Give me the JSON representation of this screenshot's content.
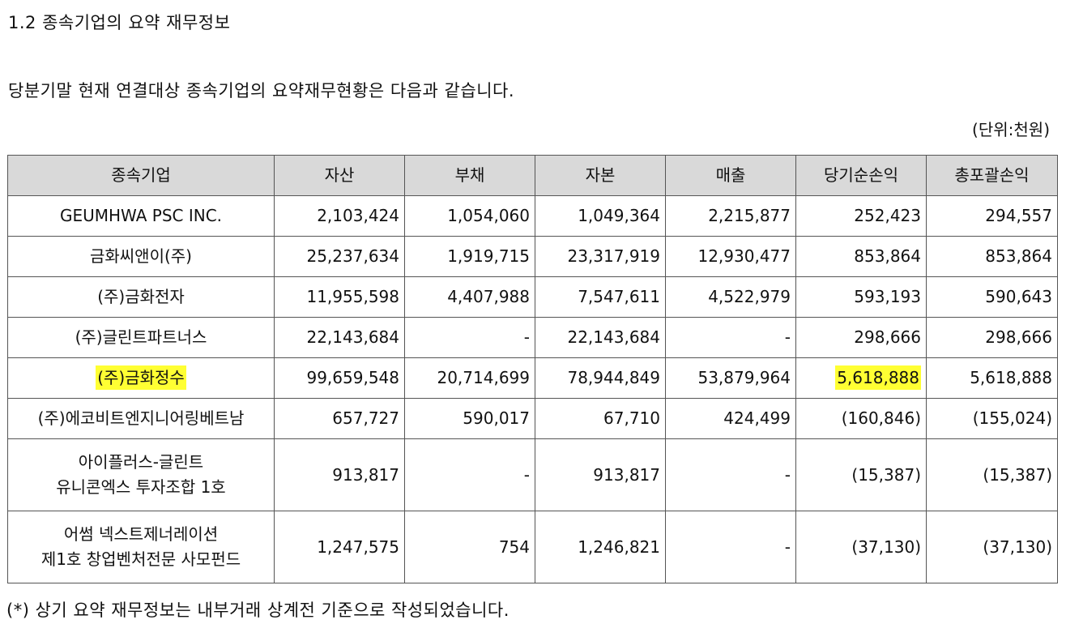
{
  "heading": "1.2 종속기업의 요약 재무정보",
  "intro": "당분기말 현재 연결대상 종속기업의 요약재무현황은 다음과 같습니다.",
  "unit": "(단위:천원)",
  "highlight_color": "#ffff33",
  "table": {
    "headers": [
      "종속기업",
      "자산",
      "부채",
      "자본",
      "매출",
      "당기순손익",
      "총포괄손익"
    ],
    "rows": [
      {
        "name": [
          "GEUMHWA PSC INC."
        ],
        "cells": [
          "2,103,424",
          "1,054,060",
          "1,049,364",
          "2,215,877",
          "252,423",
          "294,557"
        ]
      },
      {
        "name": [
          "금화씨앤이(주)"
        ],
        "cells": [
          "25,237,634",
          "1,919,715",
          "23,317,919",
          "12,930,477",
          "853,864",
          "853,864"
        ]
      },
      {
        "name": [
          "(주)금화전자"
        ],
        "cells": [
          "11,955,598",
          "4,407,988",
          "7,547,611",
          "4,522,979",
          "593,193",
          "590,643"
        ]
      },
      {
        "name": [
          "(주)글린트파트너스"
        ],
        "cells": [
          "22,143,684",
          "-",
          "22,143,684",
          "-",
          "298,666",
          "298,666"
        ]
      },
      {
        "name": [
          "(주)금화정수"
        ],
        "cells": [
          "99,659,548",
          "20,714,699",
          "78,944,849",
          "53,879,964",
          "5,618,888",
          "5,618,888"
        ],
        "highlight": [
          0,
          5
        ]
      },
      {
        "name": [
          "(주)에코비트엔지니어링베트남"
        ],
        "cells": [
          "657,727",
          "590,017",
          "67,710",
          "424,499",
          "(160,846)",
          "(155,024)"
        ]
      },
      {
        "name": [
          "아이플러스-글린트",
          "유니콘엑스 투자조합 1호"
        ],
        "cells": [
          "913,817",
          "-",
          "913,817",
          "-",
          "(15,387)",
          "(15,387)"
        ]
      },
      {
        "name": [
          "어썸 넥스트제너레이션",
          "제1호 창업벤처전문 사모펀드"
        ],
        "cells": [
          "1,247,575",
          "754",
          "1,246,821",
          "-",
          "(37,130)",
          "(37,130)"
        ]
      }
    ]
  },
  "note": "(*) 상기 요약 재무정보는 내부거래 상계전 기준으로 작성되었습니다."
}
